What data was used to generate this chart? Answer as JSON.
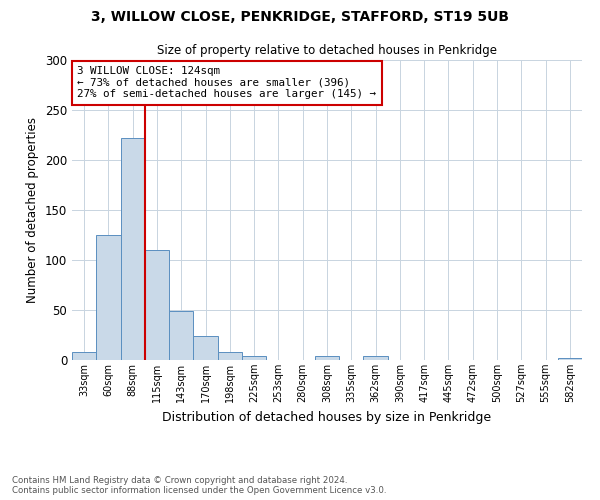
{
  "title": "3, WILLOW CLOSE, PENKRIDGE, STAFFORD, ST19 5UB",
  "subtitle": "Size of property relative to detached houses in Penkridge",
  "xlabel": "Distribution of detached houses by size in Penkridge",
  "ylabel": "Number of detached properties",
  "bar_color": "#c9d9e8",
  "bar_edge_color": "#5a8fc0",
  "bin_labels": [
    "33sqm",
    "60sqm",
    "88sqm",
    "115sqm",
    "143sqm",
    "170sqm",
    "198sqm",
    "225sqm",
    "253sqm",
    "280sqm",
    "308sqm",
    "335sqm",
    "362sqm",
    "390sqm",
    "417sqm",
    "445sqm",
    "472sqm",
    "500sqm",
    "527sqm",
    "555sqm",
    "582sqm"
  ],
  "bar_heights": [
    8,
    125,
    222,
    110,
    49,
    24,
    8,
    4,
    0,
    0,
    4,
    0,
    4,
    0,
    0,
    0,
    0,
    0,
    0,
    0,
    2
  ],
  "ylim": [
    0,
    300
  ],
  "yticks": [
    0,
    50,
    100,
    150,
    200,
    250,
    300
  ],
  "vline_x": 3,
  "vline_color": "#cc0000",
  "annotation_title": "3 WILLOW CLOSE: 124sqm",
  "annotation_line1": "← 73% of detached houses are smaller (396)",
  "annotation_line2": "27% of semi-detached houses are larger (145) →",
  "annotation_box_color": "#cc0000",
  "footer_line1": "Contains HM Land Registry data © Crown copyright and database right 2024.",
  "footer_line2": "Contains public sector information licensed under the Open Government Licence v3.0.",
  "background_color": "#ffffff",
  "grid_color": "#c8d4e0"
}
